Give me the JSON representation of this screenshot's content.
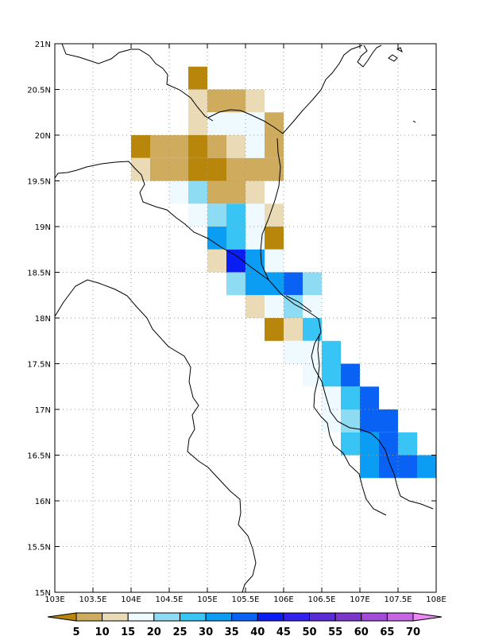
{
  "map": {
    "lon_range": [
      103,
      108
    ],
    "lat_range": [
      15,
      21
    ],
    "lon_ticks": [
      "103E",
      "103.5E",
      "104E",
      "104.5E",
      "105E",
      "105.5E",
      "106E",
      "106.5E",
      "107E",
      "107.5E",
      "108E"
    ],
    "lat_ticks": [
      "15N",
      "15.5N",
      "16N",
      "16.5N",
      "17N",
      "17.5N",
      "18N",
      "18.5N",
      "19N",
      "19.5N",
      "20N",
      "20.5N",
      "21N"
    ],
    "grid": "dotted",
    "cell_size_deg": 0.25
  },
  "colorbar": {
    "levels": [
      "5",
      "10",
      "15",
      "20",
      "25",
      "30",
      "35",
      "40",
      "45",
      "50",
      "55",
      "60",
      "65",
      "70"
    ],
    "colors": [
      "#b8860b",
      "#cfab5e",
      "#eadbb6",
      "#eefaff",
      "#8edcf4",
      "#38c4f4",
      "#0b9cf4",
      "#0a62f4",
      "#0a1ef4",
      "#3322ee",
      "#5a2cd8",
      "#7b36cc",
      "#a34ad8",
      "#c666e2",
      "#ee88f6"
    ]
  },
  "chart_data": {
    "type": "heatmap",
    "x_units": "longitude (deg E)",
    "y_units": "latitude (deg N)",
    "cells_class_legend": "class index i = bin [5*i, 5*(i+1)), 0 = below 5, 14 = above 70",
    "cells": [
      [
        104.75,
        20.5,
        0
      ],
      [
        104.75,
        20.25,
        2
      ],
      [
        105.0,
        20.25,
        1
      ],
      [
        105.25,
        20.25,
        1
      ],
      [
        105.5,
        20.25,
        2
      ],
      [
        104.75,
        20.0,
        2
      ],
      [
        105.0,
        20.0,
        3
      ],
      [
        105.25,
        20.0,
        3
      ],
      [
        105.5,
        20.0,
        3
      ],
      [
        105.75,
        20.0,
        1
      ],
      [
        104.0,
        19.75,
        0
      ],
      [
        104.25,
        19.75,
        1
      ],
      [
        104.5,
        19.75,
        1
      ],
      [
        104.75,
        19.75,
        0
      ],
      [
        105.0,
        19.75,
        1
      ],
      [
        105.25,
        19.75,
        2
      ],
      [
        105.5,
        19.75,
        3
      ],
      [
        105.75,
        19.75,
        1
      ],
      [
        104.0,
        19.5,
        2
      ],
      [
        104.25,
        19.5,
        1
      ],
      [
        104.5,
        19.5,
        1
      ],
      [
        104.75,
        19.5,
        0
      ],
      [
        105.0,
        19.5,
        0
      ],
      [
        105.25,
        19.5,
        1
      ],
      [
        105.5,
        19.5,
        1
      ],
      [
        105.75,
        19.5,
        1
      ],
      [
        104.5,
        19.25,
        3
      ],
      [
        104.75,
        19.25,
        4
      ],
      [
        105.0,
        19.25,
        1
      ],
      [
        105.25,
        19.25,
        1
      ],
      [
        105.5,
        19.25,
        2
      ],
      [
        104.75,
        19.0,
        3
      ],
      [
        105.0,
        19.0,
        4
      ],
      [
        105.25,
        19.0,
        5
      ],
      [
        105.5,
        19.0,
        3
      ],
      [
        105.75,
        19.0,
        2
      ],
      [
        105.0,
        18.75,
        6
      ],
      [
        105.25,
        18.75,
        5
      ],
      [
        105.5,
        18.75,
        3
      ],
      [
        105.75,
        18.75,
        0
      ],
      [
        105.0,
        18.5,
        2
      ],
      [
        105.25,
        18.5,
        8
      ],
      [
        105.5,
        18.5,
        6
      ],
      [
        105.75,
        18.5,
        3
      ],
      [
        105.25,
        18.25,
        4
      ],
      [
        105.5,
        18.25,
        6
      ],
      [
        105.75,
        18.25,
        6
      ],
      [
        106.0,
        18.25,
        7
      ],
      [
        106.25,
        18.25,
        4
      ],
      [
        105.5,
        18.0,
        2
      ],
      [
        105.75,
        18.0,
        3
      ],
      [
        106.0,
        18.0,
        4
      ],
      [
        106.25,
        18.0,
        3
      ],
      [
        105.75,
        17.75,
        0
      ],
      [
        106.0,
        17.75,
        2
      ],
      [
        106.25,
        17.75,
        5
      ],
      [
        106.0,
        17.5,
        3
      ],
      [
        106.25,
        17.5,
        3
      ],
      [
        106.5,
        17.5,
        5
      ],
      [
        106.25,
        17.25,
        3
      ],
      [
        106.5,
        17.25,
        5
      ],
      [
        106.75,
        17.25,
        7
      ],
      [
        106.5,
        17.0,
        3
      ],
      [
        106.75,
        17.0,
        5
      ],
      [
        107.0,
        17.0,
        7
      ],
      [
        106.5,
        16.75,
        3
      ],
      [
        106.75,
        16.75,
        4
      ],
      [
        107.0,
        16.75,
        7
      ],
      [
        107.25,
        16.75,
        7
      ],
      [
        106.75,
        16.5,
        5
      ],
      [
        107.0,
        16.5,
        6
      ],
      [
        107.25,
        16.5,
        7
      ],
      [
        107.5,
        16.5,
        5
      ],
      [
        107.0,
        16.25,
        6
      ],
      [
        107.25,
        16.25,
        7
      ],
      [
        107.5,
        16.25,
        7
      ],
      [
        107.75,
        16.25,
        6
      ]
    ]
  }
}
